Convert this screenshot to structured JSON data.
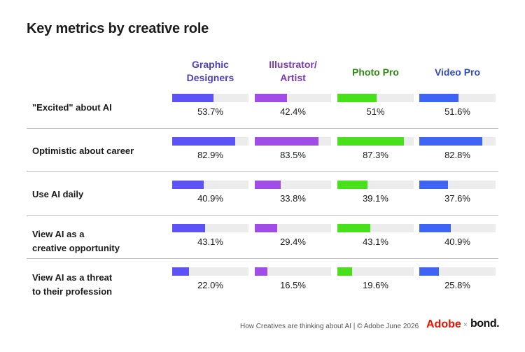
{
  "title": "Key metrics by creative role",
  "colors": {
    "graphic": "#5c52f5",
    "illustrator": "#a24ce8",
    "photo": "#47e01a",
    "video": "#3d64f5",
    "graphic_text": "#4b3fbf",
    "illustrator_text": "#7b3ab8",
    "photo_text": "#2e8a10",
    "video_text": "#2e4bbf"
  },
  "chart_data": {
    "type": "bar",
    "title": "Key metrics by creative role",
    "ylim": [
      0,
      100
    ],
    "categories": [
      "\"Excited\" about AI",
      "Optimistic about career",
      "Use AI daily",
      "View AI as a\ncreative opportunity",
      "View AI as a threat\nto their profession"
    ],
    "series": [
      {
        "name": "Graphic\nDesigners",
        "values": [
          53.7,
          82.9,
          40.9,
          43.1,
          22.0
        ],
        "labels": [
          "53.7%",
          "82.9%",
          "40.9%",
          "43.1%",
          "22.0%"
        ]
      },
      {
        "name": "Illustrator/\nArtist",
        "values": [
          42.4,
          83.5,
          33.8,
          29.4,
          16.5
        ],
        "labels": [
          "42.4%",
          "83.5%",
          "33.8%",
          "29.4%",
          "16.5%"
        ]
      },
      {
        "name": "Photo Pro",
        "values": [
          51,
          87.3,
          39.1,
          43.1,
          19.6
        ],
        "labels": [
          "51%",
          "87.3%",
          "39.1%",
          "43.1%",
          "19.6%"
        ]
      },
      {
        "name": "Video Pro",
        "values": [
          51.6,
          82.8,
          37.6,
          40.9,
          25.8
        ],
        "labels": [
          "51.6%",
          "82.8%",
          "37.6%",
          "40.9%",
          "25.8%"
        ]
      }
    ]
  },
  "footer": {
    "note": "How Creatives are thinking about AI  |  © Adobe June 2026",
    "adobe": "Adobe",
    "x": "×",
    "bond": "bond."
  }
}
